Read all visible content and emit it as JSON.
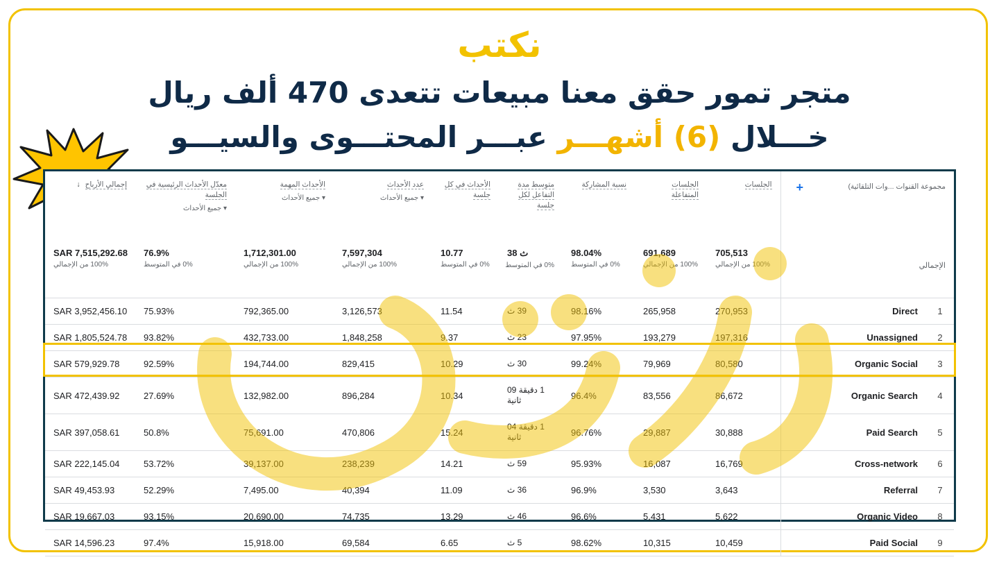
{
  "logo_text": "نكتب",
  "title": {
    "line1": "متجر تمور حقق معنا مبيعات تتعدى 470 ألف ريال",
    "line2_part1": "خـــلال",
    "line2_highlight": "(6) أشهـــر",
    "line2_part2": "عبـــر المحتـــوى والسيـــو"
  },
  "colors": {
    "accent": "#f2c200",
    "title": "#0f2a47",
    "table_border": "#0f3a4a",
    "plus": "#1a73e8"
  },
  "table": {
    "dimension_header": "مجموعة القنوات ...وات التلقائية)",
    "add_icon": "plus-icon",
    "columns": [
      {
        "label": "الجلسات"
      },
      {
        "label": "الجلسات المتفاعلة"
      },
      {
        "label": "نسبة المشاركة"
      },
      {
        "label": "متوسط مدة التفاعل لكل جلسة"
      },
      {
        "label": "الأحداث في كل جلسة"
      },
      {
        "label": "عدد الأحداث",
        "sub": "جميع الأحداث"
      },
      {
        "label": "الأحداث المهمة",
        "sub": "جميع الأحداث"
      },
      {
        "label": "معدّل الأحداث الرئيسية في الجلسة",
        "sub": "جميع الأحداث"
      },
      {
        "label": "إجمالي الأرباح",
        "sort_icon": "arrow-down-icon"
      }
    ],
    "totals": {
      "label": "الإجمالي",
      "values": [
        "705,513",
        "691,689",
        "98.04%",
        "38 ث",
        "10.77",
        "7,597,304",
        "1,712,301.00",
        "76.9%",
        "SAR 7,515,292.68"
      ],
      "subs": [
        "100% من الإجمالي",
        "100% من الإجمالي",
        "0% في المتوسط",
        "0% في المتوسط",
        "0% في المتوسط",
        "100% من الإجمالي",
        "100% من الإجمالي",
        "0% في المتوسط",
        "100% من الإجمالي"
      ]
    },
    "rows": [
      {
        "idx": "1",
        "name": "Direct",
        "values": [
          "270,953",
          "265,958",
          "98.16%",
          "39 ث",
          "11.54",
          "3,126,573",
          "792,365.00",
          "75.93%",
          "SAR 3,952,456.10"
        ]
      },
      {
        "idx": "2",
        "name": "Unassigned",
        "values": [
          "197,316",
          "193,279",
          "97.95%",
          "23 ث",
          "9.37",
          "1,848,258",
          "432,733.00",
          "93.82%",
          "SAR 1,805,524.78"
        ]
      },
      {
        "idx": "3",
        "name": "Organic Social",
        "values": [
          "80,580",
          "79,969",
          "99.24%",
          "30 ث",
          "10.29",
          "829,415",
          "194,744.00",
          "92.59%",
          "SAR 579,929.78"
        ]
      },
      {
        "idx": "4",
        "name": "Organic Search",
        "values": [
          "86,672",
          "83,556",
          "96.4%",
          "1 دقيقة 09 ثانية",
          "10.34",
          "896,284",
          "132,982.00",
          "27.69%",
          "SAR 472,439.92"
        ]
      },
      {
        "idx": "5",
        "name": "Paid Search",
        "values": [
          "30,888",
          "29,887",
          "96.76%",
          "1 دقيقة 04 ثانية",
          "15.24",
          "470,806",
          "75,691.00",
          "50.8%",
          "SAR 397,058.61"
        ]
      },
      {
        "idx": "6",
        "name": "Cross-network",
        "values": [
          "16,769",
          "16,087",
          "95.93%",
          "59 ث",
          "14.21",
          "238,239",
          "39,137.00",
          "53.72%",
          "SAR 222,145.04"
        ]
      },
      {
        "idx": "7",
        "name": "Referral",
        "values": [
          "3,643",
          "3,530",
          "96.9%",
          "36 ث",
          "11.09",
          "40,394",
          "7,495.00",
          "52.29%",
          "SAR 49,453.93"
        ]
      },
      {
        "idx": "8",
        "name": "Organic Video",
        "values": [
          "5,622",
          "5,431",
          "96.6%",
          "46 ث",
          "13.29",
          "74,735",
          "20,690.00",
          "93.15%",
          "SAR 19,667.03"
        ]
      },
      {
        "idx": "9",
        "name": "Paid Social",
        "values": [
          "10,459",
          "10,315",
          "98.62%",
          "5 ث",
          "6.65",
          "69,584",
          "15,918.00",
          "97.4%",
          "SAR 14,596.23"
        ]
      }
    ]
  }
}
